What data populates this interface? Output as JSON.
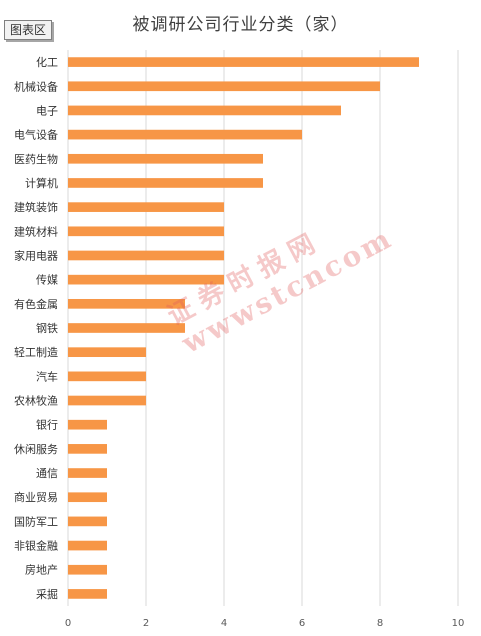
{
  "chart_area_label": "图表区",
  "watermark": {
    "text": "证券时报网",
    "url": "wwwstcncom"
  },
  "chart_data": {
    "type": "bar",
    "orientation": "horizontal",
    "title": "被调研公司行业分类（家）",
    "categories": [
      "化工",
      "机械设备",
      "电子",
      "电气设备",
      "医药生物",
      "计算机",
      "建筑装饰",
      "建筑材料",
      "家用电器",
      "传媒",
      "有色金属",
      "钢铁",
      "轻工制造",
      "汽车",
      "农林牧渔",
      "银行",
      "休闲服务",
      "通信",
      "商业贸易",
      "国防军工",
      "非银金融",
      "房地产",
      "采掘"
    ],
    "values": [
      9,
      8,
      7,
      6,
      5,
      5,
      4,
      4,
      4,
      4,
      3,
      3,
      2,
      2,
      2,
      1,
      1,
      1,
      1,
      1,
      1,
      1,
      1
    ],
    "xlim": [
      0,
      10
    ],
    "xticks": [
      0,
      2,
      4,
      6,
      8,
      10
    ],
    "grid": true,
    "bar_color": "#F79646",
    "grid_color": "#D9D9D9"
  }
}
